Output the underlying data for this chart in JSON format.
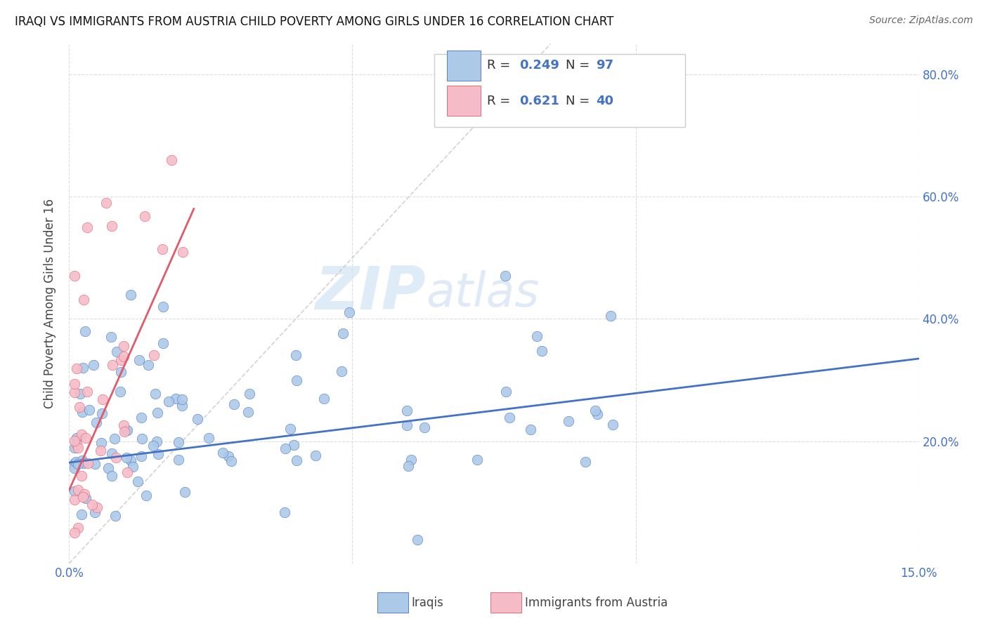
{
  "title": "IRAQI VS IMMIGRANTS FROM AUSTRIA CHILD POVERTY AMONG GIRLS UNDER 16 CORRELATION CHART",
  "source": "Source: ZipAtlas.com",
  "ylabel": "Child Poverty Among Girls Under 16",
  "xlim": [
    0.0,
    0.15
  ],
  "ylim": [
    0.0,
    0.85
  ],
  "xticks": [
    0.0,
    0.05,
    0.1,
    0.15
  ],
  "xtick_labels": [
    "0.0%",
    "",
    "",
    "15.0%"
  ],
  "ytick_labels": [
    "",
    "20.0%",
    "40.0%",
    "60.0%",
    "80.0%"
  ],
  "yticks": [
    0.0,
    0.2,
    0.4,
    0.6,
    0.8
  ],
  "iraqi_color": "#adc9e8",
  "austria_color": "#f5bcc8",
  "trend_iraqi_color": "#4472c4",
  "trend_austria_color": "#e05a6a",
  "watermark_zip": "ZIP",
  "watermark_atlas": "atlas",
  "legend_R_iraqi": "0.249",
  "legend_N_iraqi": "97",
  "legend_R_austria": "0.621",
  "legend_N_austria": "40",
  "iraqi_trend_x0": 0.0,
  "iraqi_trend_y0": 0.165,
  "iraqi_trend_x1": 0.15,
  "iraqi_trend_y1": 0.335,
  "austria_trend_x0": 0.0,
  "austria_trend_y0": 0.12,
  "austria_trend_x1": 0.022,
  "austria_trend_y1": 0.58,
  "ref_line_x0": 0.0,
  "ref_line_y0": 0.0,
  "ref_line_x1": 0.085,
  "ref_line_y1": 0.85
}
